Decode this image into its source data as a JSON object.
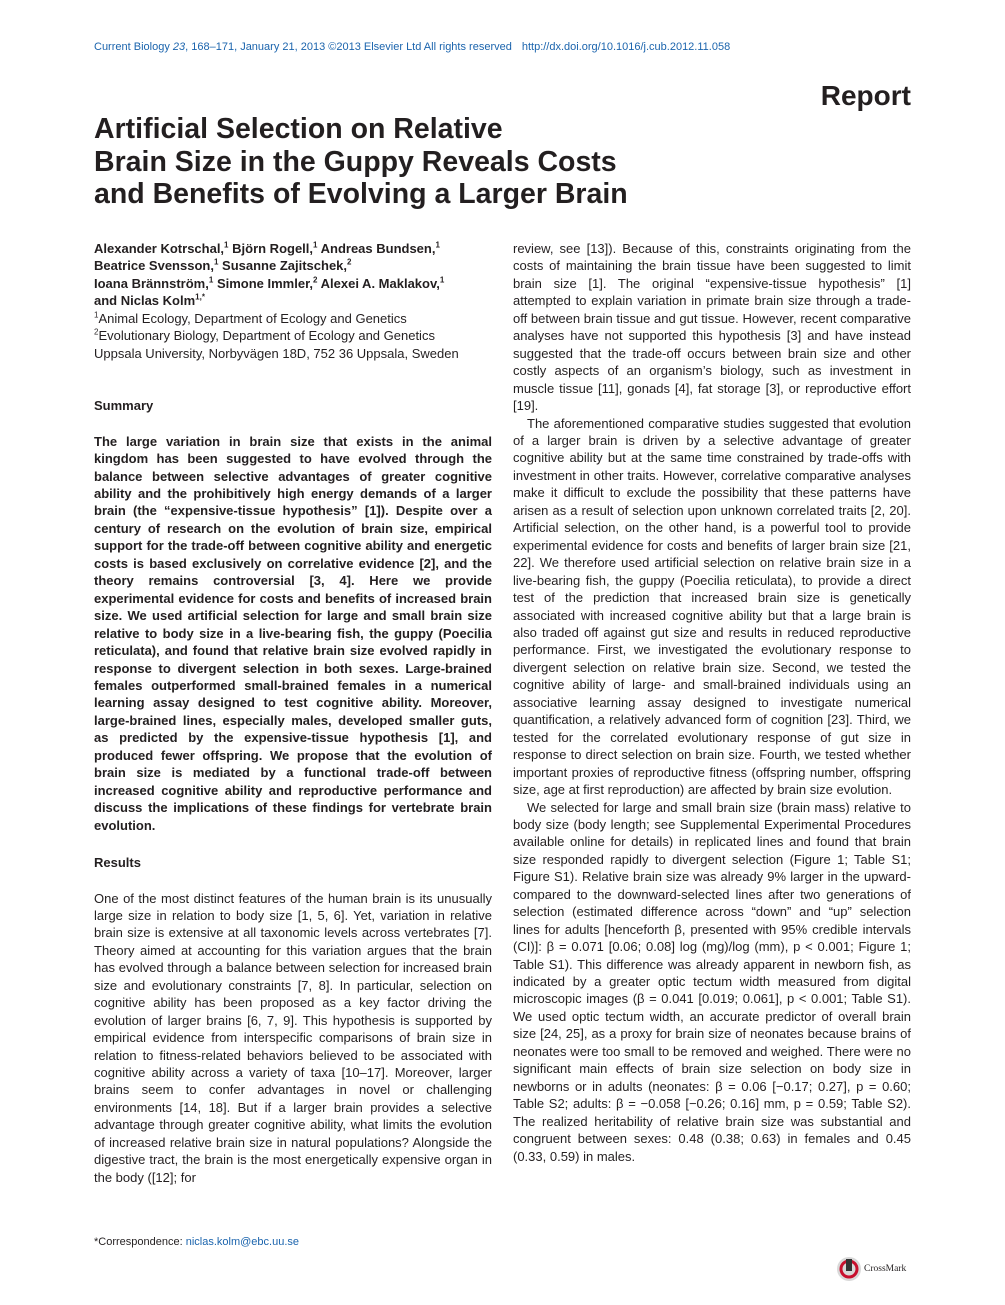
{
  "header": {
    "journal": "Current Biology",
    "volume": "23",
    "info": ", 168–171, January 21, 2013 ©2013 Elsevier Ltd All rights reserved",
    "doi": "http://dx.doi.org/10.1016/j.cub.2012.11.058"
  },
  "article_type": "Report",
  "title": [
    "Artificial Selection on Relative",
    "Brain Size in the Guppy Reveals Costs",
    "and Benefits of Evolving a Larger Brain"
  ],
  "authors": [
    [
      {
        "name": "Alexander Kotrschal,",
        "sup": "1"
      },
      {
        "name": "Björn Rogell,",
        "sup": "1"
      },
      {
        "name": "Andreas Bundsen,",
        "sup": "1"
      }
    ],
    [
      {
        "name": "Beatrice Svensson,",
        "sup": "1"
      },
      {
        "name": "Susanne Zajitschek,",
        "sup": "2"
      }
    ],
    [
      {
        "name": "Ioana Brännström,",
        "sup": "1"
      },
      {
        "name": "Simone Immler,",
        "sup": "2"
      },
      {
        "name": "Alexei A. Maklakov,",
        "sup": "1"
      }
    ],
    [
      {
        "name": "and Niclas Kolm",
        "sup": "1,*"
      }
    ]
  ],
  "affiliations": [
    {
      "sup": "1",
      "text": "Animal Ecology, Department of Ecology and Genetics"
    },
    {
      "sup": "2",
      "text": "Evolutionary Biology, Department of Ecology and Genetics"
    },
    {
      "sup": "",
      "text": "Uppsala University, Norbyvägen 18D, 752 36 Uppsala, Sweden"
    }
  ],
  "summary": {
    "heading": "Summary",
    "text": "The large variation in brain size that exists in the animal kingdom has been suggested to have evolved through the balance between selective advantages of greater cognitive ability and the prohibitively high energy demands of a larger brain (the “expensive-tissue hypothesis” [1]). Despite over a century of research on the evolution of brain size, empirical support for the trade-off between cognitive ability and energetic costs is based exclusively on correlative evidence [2], and the theory remains controversial [3, 4]. Here we provide experimental evidence for costs and benefits of increased brain size. We used artificial selection for large and small brain size relative to body size in a live-bearing fish, the guppy (Poecilia reticulata), and found that relative brain size evolved rapidly in response to divergent selection in both sexes. Large-brained females outperformed small-brained females in a numerical learning assay designed to test cognitive ability. Moreover, large-brained lines, especially males, developed smaller guts, as predicted by the expensive-tissue hypothesis [1], and produced fewer offspring. We propose that the evolution of brain size is mediated by a functional trade-off between increased cognitive ability and reproductive performance and discuss the implications of these findings for vertebrate brain evolution."
  },
  "results": {
    "heading": "Results",
    "paragraphs": [
      "One of the most distinct features of the human brain is its unusually large size in relation to body size [1, 5, 6]. Yet, variation in relative brain size is extensive at all taxonomic levels across vertebrates [7]. Theory aimed at accounting for this variation argues that the brain has evolved through a balance between selection for increased brain size and evolutionary constraints [7, 8]. In particular, selection on cognitive ability has been proposed as a key factor driving the evolution of larger brains [6, 7, 9]. This hypothesis is supported by empirical evidence from interspecific comparisons of brain size in relation to fitness-related behaviors believed to be associated with cognitive ability across a variety of taxa [10–17]. Moreover, larger brains seem to confer advantages in novel or challenging environments [14, 18]. But if a larger brain provides a selective advantage through greater cognitive ability, what limits the evolution of increased relative brain size in natural populations? Alongside the digestive tract, the brain is the most energetically expensive organ in the body ([12]; for",
      "review, see [13]). Because of this, constraints originating from the costs of maintaining the brain tissue have been suggested to limit brain size [1]. The original “expensive-tissue hypothesis” [1] attempted to explain variation in primate brain size through a trade-off between brain tissue and gut tissue. However, recent comparative analyses have not supported this hypothesis [3] and have instead suggested that the trade-off occurs between brain size and other costly aspects of an organism’s biology, such as investment in muscle tissue [11], gonads [4], fat storage [3], or reproductive effort [19].",
      "The aforementioned comparative studies suggested that evolution of a larger brain is driven by a selective advantage of greater cognitive ability but at the same time constrained by trade-offs with investment in other traits. However, correlative comparative analyses make it difficult to exclude the possibility that these patterns have arisen as a result of selection upon unknown correlated traits [2, 20]. Artificial selection, on the other hand, is a powerful tool to provide experimental evidence for costs and benefits of larger brain size [21, 22]. We therefore used artificial selection on relative brain size in a live-bearing fish, the guppy (Poecilia reticulata), to provide a direct test of the prediction that increased brain size is genetically associated with increased cognitive ability but that a large brain is also traded off against gut size and results in reduced reproductive performance. First, we investigated the evolutionary response to divergent selection on relative brain size. Second, we tested the cognitive ability of large- and small-brained individuals using an associative learning assay designed to investigate numerical quantification, a relatively advanced form of cognition [23]. Third, we tested for the correlated evolutionary response of gut size in response to direct selection on brain size. Fourth, we tested whether important proxies of reproductive fitness (offspring number, offspring size, age at first reproduction) are affected by brain size evolution.",
      "We selected for large and small brain size (brain mass) relative to body size (body length; see Supplemental Experimental Procedures available online for details) in replicated lines and found that brain size responded rapidly to divergent selection (Figure 1; Table S1; Figure S1). Relative brain size was already 9% larger in the upward- compared to the downward-selected lines after two generations of selection (estimated difference across “down” and “up” selection lines for adults [henceforth β, presented with 95% credible intervals (CI)]: β = 0.071 [0.06; 0.08] log (mg)/log (mm), p < 0.001; Figure 1; Table S1). This difference was already apparent in newborn fish, as indicated by a greater optic tectum width measured from digital microscopic images (β = 0.041 [0.019; 0.061], p < 0.001; Table S1). We used optic tectum width, an accurate predictor of overall brain size [24, 25], as a proxy for brain size of neonates because brains of neonates were too small to be removed and weighed. There were no significant main effects of brain size selection on body size in newborns or in adults (neonates: β = 0.06 [−0.17; 0.27], p = 0.60; Table S2; adults: β = −0.058 [−0.26; 0.16] mm, p = 0.59; Table S2). The realized heritability of relative brain size was substantial and congruent between sexes: 0.48 (0.38; 0.63) in females and 0.45 (0.33, 0.59) in males."
    ]
  },
  "correspondence": {
    "label": "*Correspondence: ",
    "email": "niclas.kolm@ebc.uu.se"
  },
  "crossmark": "CrossMark"
}
